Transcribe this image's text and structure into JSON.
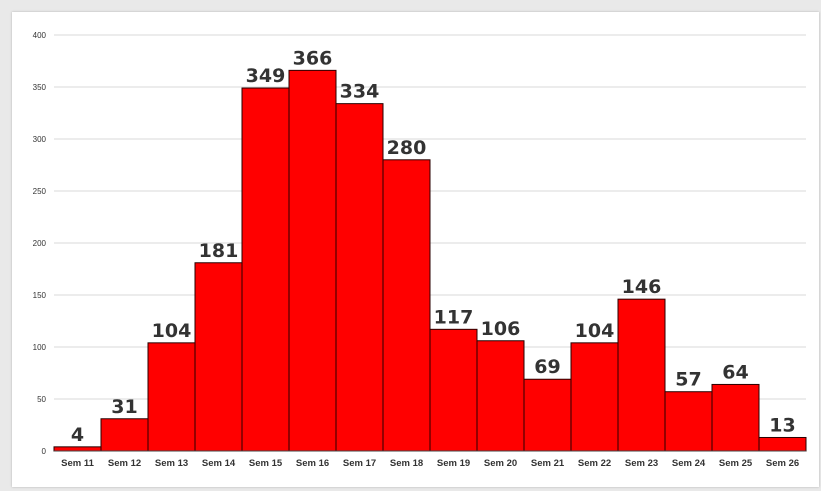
{
  "colors": {
    "bar": "#ff0000",
    "background": "#ffffff",
    "page": "#e9e9e9"
  },
  "chart_data": {
    "type": "bar",
    "title": "",
    "xlabel": "",
    "ylabel": "",
    "ylim": [
      0,
      400
    ],
    "yticks": [
      0,
      50,
      100,
      150,
      200,
      250,
      300,
      350,
      400
    ],
    "grid": true,
    "legend": "none",
    "categories": [
      "Sem 11",
      "Sem 12",
      "Sem 13",
      "Sem 14",
      "Sem 15",
      "Sem 16",
      "Sem 17",
      "Sem 18",
      "Sem 19",
      "Sem 20",
      "Sem 21",
      "Sem 22",
      "Sem 23",
      "Sem 24",
      "Sem 25",
      "Sem 26"
    ],
    "values": [
      4,
      31,
      104,
      181,
      349,
      366,
      334,
      280,
      117,
      106,
      69,
      104,
      146,
      57,
      64,
      13
    ]
  }
}
